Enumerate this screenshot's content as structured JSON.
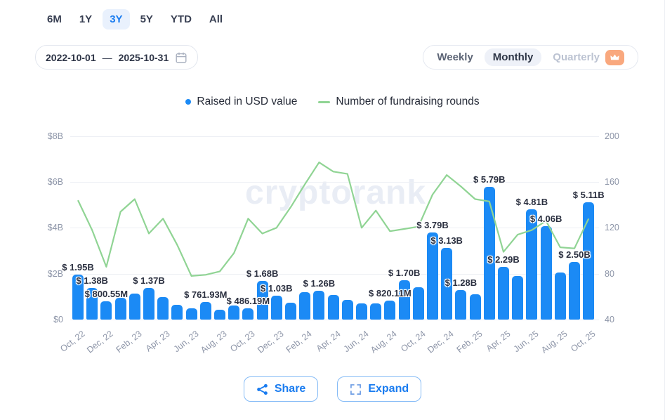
{
  "timeframe_tabs": {
    "items": [
      "6M",
      "1Y",
      "3Y",
      "5Y",
      "YTD",
      "All"
    ],
    "selected": "3Y"
  },
  "date_range": {
    "start": "2022-10-01",
    "separator": "—",
    "end": "2025-10-31"
  },
  "interval_toggle": {
    "options": [
      "Weekly",
      "Monthly",
      "Quarterly"
    ],
    "selected": "Monthly",
    "premium_option": "Quarterly"
  },
  "legend": [
    {
      "label": "Raised in USD value",
      "color": "#1b8af5",
      "marker": "dot"
    },
    {
      "label": "Number of fundraising rounds",
      "color": "#90d494",
      "marker": "line"
    }
  ],
  "watermark": "cryptorank",
  "buttons": {
    "share": "Share",
    "expand": "Expand"
  },
  "colors": {
    "accent": "#1a7cf0",
    "bar": "#1b8af5",
    "line": "#90d494",
    "premium_badge": "#f9a87e"
  },
  "chart_data": {
    "type": "bar",
    "x": [
      "Oct 2022",
      "Nov 2022",
      "Dec 2022",
      "Jan 2023",
      "Feb 2023",
      "Mar 2023",
      "Apr 2023",
      "May 2023",
      "Jun 2023",
      "Jul 2023",
      "Aug 2023",
      "Sep 2023",
      "Oct 2023",
      "Nov 2023",
      "Dec 2023",
      "Jan 2024",
      "Feb 2024",
      "Mar 2024",
      "Apr 2024",
      "May 2024",
      "Jun 2024",
      "Jul 2024",
      "Aug 2024",
      "Sep 2024",
      "Oct 2024",
      "Nov 2024",
      "Dec 2024",
      "Jan 2025",
      "Feb 2025",
      "Mar 2025",
      "Apr 2025",
      "May 2025",
      "Jun 2025",
      "Jul 2025",
      "Aug 2025",
      "Sep 2025",
      "Oct 2025"
    ],
    "series": [
      {
        "name": "Raised in USD value",
        "type": "bar",
        "unit": "USD billions",
        "color": "#1b8af5",
        "values": [
          1.95,
          1.38,
          0.80055,
          0.94,
          1.12,
          1.37,
          0.97,
          0.65,
          0.48,
          0.76193,
          0.44,
          0.62,
          0.48619,
          1.68,
          1.03,
          0.72,
          1.2,
          1.26,
          1.07,
          0.87,
          0.71,
          0.71,
          0.82011,
          1.7,
          1.4,
          3.79,
          3.13,
          1.28,
          1.1,
          5.79,
          2.29,
          1.9,
          4.81,
          4.06,
          2.05,
          2.5,
          5.11
        ]
      },
      {
        "name": "Number of fundraising rounds",
        "type": "line",
        "unit": "rounds",
        "color": "#90d494",
        "values": [
          144,
          118,
          86,
          134,
          145,
          115,
          128,
          105,
          78,
          79,
          82,
          98,
          128,
          115,
          120,
          138,
          158,
          177,
          169,
          167,
          120,
          135,
          117,
          119,
          121,
          149,
          166,
          156,
          145,
          143,
          99,
          114,
          118,
          126,
          103,
          102,
          128
        ]
      }
    ],
    "bar_labels": [
      {
        "index": 0,
        "text": "$ 1.95B"
      },
      {
        "index": 1,
        "text": "$ 1.38B"
      },
      {
        "index": 2,
        "text": "$ 800.55M"
      },
      {
        "index": 5,
        "text": "$ 1.37B"
      },
      {
        "index": 9,
        "text": "$ 761.93M"
      },
      {
        "index": 12,
        "text": "$ 486.19M"
      },
      {
        "index": 13,
        "text": "$ 1.68B"
      },
      {
        "index": 14,
        "text": "$ 1.03B"
      },
      {
        "index": 17,
        "text": "$ 1.26B"
      },
      {
        "index": 22,
        "text": "$ 820.11M"
      },
      {
        "index": 23,
        "text": "$ 1.70B"
      },
      {
        "index": 25,
        "text": "$ 3.79B"
      },
      {
        "index": 26,
        "text": "$ 3.13B"
      },
      {
        "index": 27,
        "text": "$ 1.28B"
      },
      {
        "index": 29,
        "text": "$ 5.79B"
      },
      {
        "index": 30,
        "text": "$ 2.29B"
      },
      {
        "index": 32,
        "text": "$ 4.81B"
      },
      {
        "index": 33,
        "text": "$ 4.06B"
      },
      {
        "index": 35,
        "text": "$ 2.50B"
      },
      {
        "index": 36,
        "text": "$ 5.11B"
      }
    ],
    "x_tick_labels": [
      "Oct, 22",
      "Dec, 22",
      "Feb, 23",
      "Apr, 23",
      "Jun, 23",
      "Aug, 23",
      "Oct, 23",
      "Dec, 23",
      "Feb, 24",
      "Apr, 24",
      "Jun, 24",
      "Aug, 24",
      "Oct, 24",
      "Dec, 24",
      "Feb, 25",
      "Apr, 25",
      "Jun, 25",
      "Aug, 25",
      "Oct, 25"
    ],
    "y_left": {
      "ticks": [
        "$0",
        "$2B",
        "$4B",
        "$6B",
        "$8B"
      ],
      "range": [
        0,
        8
      ],
      "unit": "USD billions"
    },
    "y_right": {
      "ticks": [
        "40",
        "80",
        "120",
        "160",
        "200"
      ],
      "range": [
        40,
        200
      ],
      "unit": "rounds"
    },
    "grid": true,
    "legend_position": "top"
  }
}
